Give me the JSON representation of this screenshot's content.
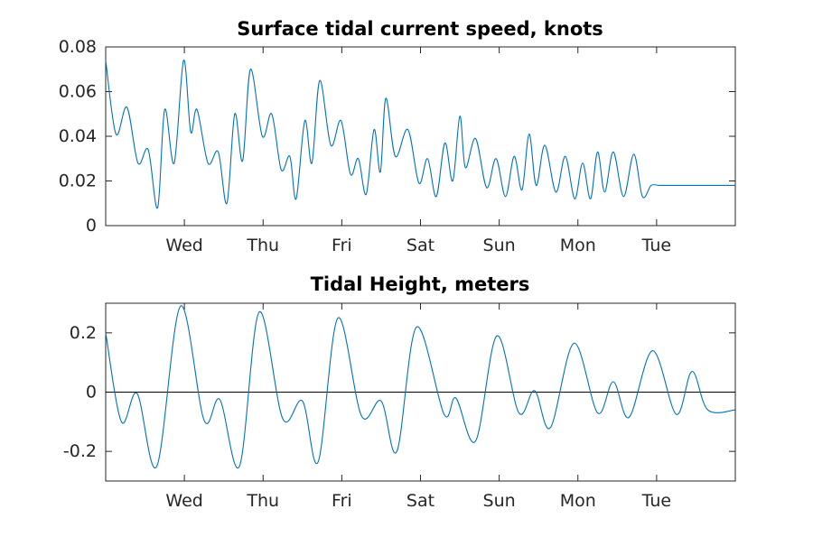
{
  "chart_data": [
    {
      "type": "line",
      "title": "Surface tidal current speed, knots",
      "xlabel": "",
      "ylabel": "",
      "x_unit": "days",
      "xlim": [
        0,
        8.0
      ],
      "ylim": [
        0,
        0.08
      ],
      "yticks": [
        0,
        0.02,
        0.04,
        0.06,
        0.08
      ],
      "ytick_labels": [
        "0",
        "0.02",
        "0.04",
        "0.06",
        "0.08"
      ],
      "xticks": [
        1,
        2,
        3,
        4,
        5,
        6,
        7
      ],
      "xtick_labels": [
        "Wed",
        "Thu",
        "Fri",
        "Sat",
        "Sun",
        "Mon",
        "Tue"
      ],
      "grid": false,
      "series": [
        {
          "color": "#0072BD",
          "x": [
            0.0,
            0.13,
            0.27,
            0.41,
            0.54,
            0.66,
            0.75,
            0.87,
            0.99,
            1.08,
            1.16,
            1.3,
            1.43,
            1.54,
            1.64,
            1.74,
            1.84,
            1.99,
            2.11,
            2.23,
            2.34,
            2.42,
            2.53,
            2.62,
            2.72,
            2.86,
            2.99,
            3.11,
            3.21,
            3.31,
            3.41,
            3.49,
            3.56,
            3.68,
            3.84,
            3.98,
            4.09,
            4.2,
            4.31,
            4.41,
            4.5,
            4.57,
            4.7,
            4.84,
            4.96,
            5.08,
            5.19,
            5.29,
            5.38,
            5.47,
            5.58,
            5.72,
            5.84,
            5.96,
            6.06,
            6.16,
            6.25,
            6.34,
            6.45,
            6.58,
            6.71,
            6.82,
            6.93,
            7.03,
            7.11,
            7.21,
            7.32,
            7.46,
            7.58,
            7.7,
            7.81,
            7.92,
            8.0
          ],
          "y": [
            0.074,
            0.041,
            0.053,
            0.028,
            0.034,
            0.008,
            0.052,
            0.028,
            0.074,
            0.042,
            0.052,
            0.028,
            0.033,
            0.01,
            0.05,
            0.029,
            0.07,
            0.04,
            0.05,
            0.025,
            0.031,
            0.012,
            0.047,
            0.028,
            0.065,
            0.036,
            0.047,
            0.023,
            0.03,
            0.014,
            0.043,
            0.024,
            0.057,
            0.031,
            0.043,
            0.019,
            0.03,
            0.013,
            0.037,
            0.02,
            0.049,
            0.026,
            0.039,
            0.017,
            0.03,
            0.013,
            0.031,
            0.016,
            0.041,
            0.018,
            0.036,
            0.015,
            0.031,
            0.012,
            0.028,
            0.012,
            0.033,
            0.015,
            0.033,
            0.013,
            0.032,
            0.013,
            0.018,
            0.018,
            0.018,
            0.018,
            0.018,
            0.018,
            0.018,
            0.018,
            0.018,
            0.018,
            0.018
          ]
        }
      ]
    },
    {
      "type": "line",
      "title": "Tidal Height, meters",
      "xlabel": "",
      "ylabel": "",
      "x_unit": "days",
      "xlim": [
        0,
        8.0
      ],
      "ylim": [
        -0.3,
        0.3
      ],
      "yticks": [
        -0.2,
        0,
        0.2
      ],
      "ytick_labels": [
        "-0.2",
        "0",
        "0.2"
      ],
      "xticks": [
        1,
        2,
        3,
        4,
        5,
        6,
        7
      ],
      "xtick_labels": [
        "Wed",
        "Thu",
        "Fri",
        "Sat",
        "Sun",
        "Mon",
        "Tue"
      ],
      "grid": false,
      "zero_line": true,
      "series": [
        {
          "color": "#0072BD",
          "x": [
            0.0,
            0.2,
            0.4,
            0.65,
            0.95,
            1.25,
            1.45,
            1.7,
            1.95,
            2.25,
            2.5,
            2.7,
            2.95,
            3.25,
            3.5,
            3.7,
            3.95,
            4.3,
            4.45,
            4.7,
            4.97,
            5.25,
            5.45,
            5.65,
            5.95,
            6.25,
            6.45,
            6.65,
            6.95,
            7.25,
            7.45,
            7.65,
            8.0
          ],
          "y": [
            0.2,
            -0.1,
            -0.005,
            -0.25,
            0.29,
            -0.095,
            -0.025,
            -0.25,
            0.27,
            -0.09,
            -0.03,
            -0.235,
            0.25,
            -0.08,
            -0.03,
            -0.2,
            0.22,
            -0.075,
            -0.02,
            -0.165,
            0.19,
            -0.07,
            0.005,
            -0.12,
            0.165,
            -0.07,
            0.035,
            -0.085,
            0.14,
            -0.075,
            0.07,
            -0.06,
            -0.06
          ]
        }
      ]
    }
  ]
}
